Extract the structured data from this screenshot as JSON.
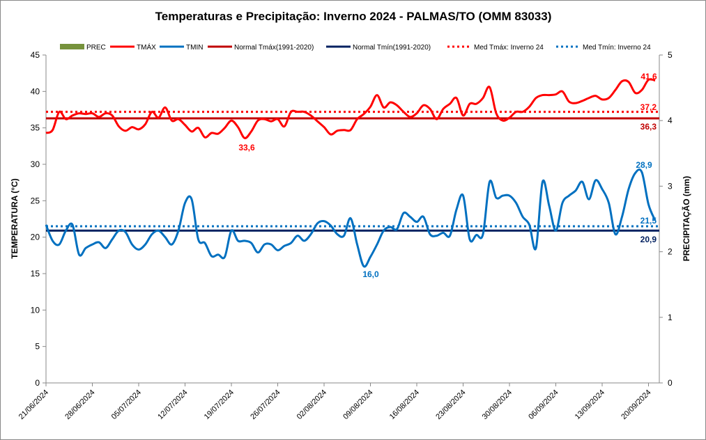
{
  "chart_data": {
    "type": "line",
    "title": "Temperaturas  e Precipitação: Inverno 2024 - PALMAS/TO (OMM 83033)",
    "ylabel": "TEMPERATURA  (°C)",
    "y2label": "PRECIPITAÇÃO (mm)",
    "ylim": [
      0,
      45
    ],
    "y2lim": [
      0,
      5
    ],
    "yticks": [
      "0",
      "5",
      "10",
      "15",
      "20",
      "25",
      "30",
      "35",
      "40",
      "45"
    ],
    "y2ticks": [
      "0",
      "1",
      "2",
      "3",
      "4",
      "5"
    ],
    "xticks": [
      "21/06/2024",
      "28/06/2024",
      "05/07/2024",
      "12/07/2024",
      "19/07/2024",
      "26/07/2024",
      "02/08/2024",
      "09/08/2024",
      "16/08/2024",
      "23/08/2024",
      "30/08/2024",
      "06/09/2024",
      "13/09/2024",
      "20/09/2024"
    ],
    "grid": false,
    "legend": "top",
    "colors": {
      "prec": "#76923c",
      "tmax": "#ff0000",
      "tmin": "#0070c0",
      "normal_tmax": "#c00000",
      "normal_tmin": "#002060"
    },
    "legend_entries": [
      "PREC",
      "TMÁX",
      "TMIN",
      "Normal Tmáx(1991-2020)",
      "Normal Tmín(1991-2020)",
      "Med Tmáx: Inverno 24",
      "Med Tmín: Inverno 24"
    ],
    "series": [
      {
        "name": "TMÁX",
        "values": [
          34.3,
          34.7,
          37.2,
          36.2,
          36.7,
          37.0,
          36.9,
          37.0,
          36.5,
          37.0,
          36.7,
          35.2,
          34.6,
          35.1,
          34.8,
          35.5,
          37.2,
          36.4,
          37.8,
          36.0,
          36.2,
          35.4,
          34.5,
          35.0,
          33.7,
          34.3,
          34.2,
          35.0,
          36.0,
          35.1,
          33.6,
          34.5,
          36.0,
          36.2,
          35.9,
          36.2,
          35.2,
          37.2,
          37.2,
          37.2,
          36.7,
          35.9,
          35.1,
          34.1,
          34.6,
          34.7,
          34.7,
          36.2,
          36.9,
          37.9,
          39.5,
          37.8,
          38.5,
          38.1,
          37.2,
          36.5,
          37.0,
          38.1,
          37.6,
          36.2,
          37.6,
          38.3,
          39.1,
          36.7,
          38.3,
          38.3,
          39.1,
          40.6,
          37.0,
          36.0,
          36.4,
          37.2,
          37.2,
          37.9,
          39.1,
          39.5,
          39.5,
          39.6,
          40.0,
          38.6,
          38.4,
          38.7,
          39.1,
          39.4,
          38.9,
          39.1,
          40.2,
          41.4,
          41.3,
          39.8,
          40.2,
          41.6,
          41.5
        ]
      },
      {
        "name": "TMIN",
        "values": [
          21.7,
          19.5,
          19.0,
          20.9,
          21.7,
          17.6,
          18.5,
          19.0,
          19.3,
          18.5,
          19.7,
          20.9,
          20.7,
          19.0,
          18.3,
          19.0,
          20.4,
          20.9,
          20.0,
          19.0,
          20.9,
          24.7,
          25.2,
          19.7,
          19.2,
          17.4,
          17.6,
          17.3,
          20.9,
          19.5,
          19.5,
          19.2,
          17.9,
          19.0,
          19.0,
          18.2,
          18.8,
          19.2,
          20.2,
          19.5,
          20.4,
          21.9,
          22.2,
          21.6,
          20.4,
          20.2,
          22.6,
          19.0,
          16.0,
          17.3,
          19.0,
          20.9,
          21.4,
          21.1,
          23.3,
          22.8,
          22.1,
          22.8,
          20.4,
          20.2,
          20.6,
          20.2,
          23.8,
          25.7,
          19.7,
          20.3,
          20.4,
          27.6,
          25.4,
          25.7,
          25.7,
          24.7,
          22.8,
          21.7,
          18.5,
          27.6,
          24.3,
          20.9,
          24.7,
          25.7,
          26.4,
          27.6,
          25.2,
          27.8,
          26.6,
          24.7,
          20.4,
          22.8,
          26.6,
          28.8,
          28.9,
          24.5,
          22.3
        ]
      },
      {
        "name": "Normal Tmáx(1991-2020)",
        "value": 36.3
      },
      {
        "name": "Normal Tmín(1991-2020)",
        "value": 20.9
      },
      {
        "name": "Med Tmáx: Inverno 24",
        "value": 37.2
      },
      {
        "name": "Med Tmín: Inverno 24",
        "value": 21.5
      },
      {
        "name": "PREC",
        "values": []
      }
    ],
    "annotations": {
      "tmax_max": "41,6",
      "tmax_min": "33,6",
      "tmin_max": "28,9",
      "tmin_min": "16,0",
      "med_tmax": "37,2",
      "normal_tmax": "36,3",
      "med_tmin": "21,5",
      "normal_tmin": "20,9"
    }
  }
}
